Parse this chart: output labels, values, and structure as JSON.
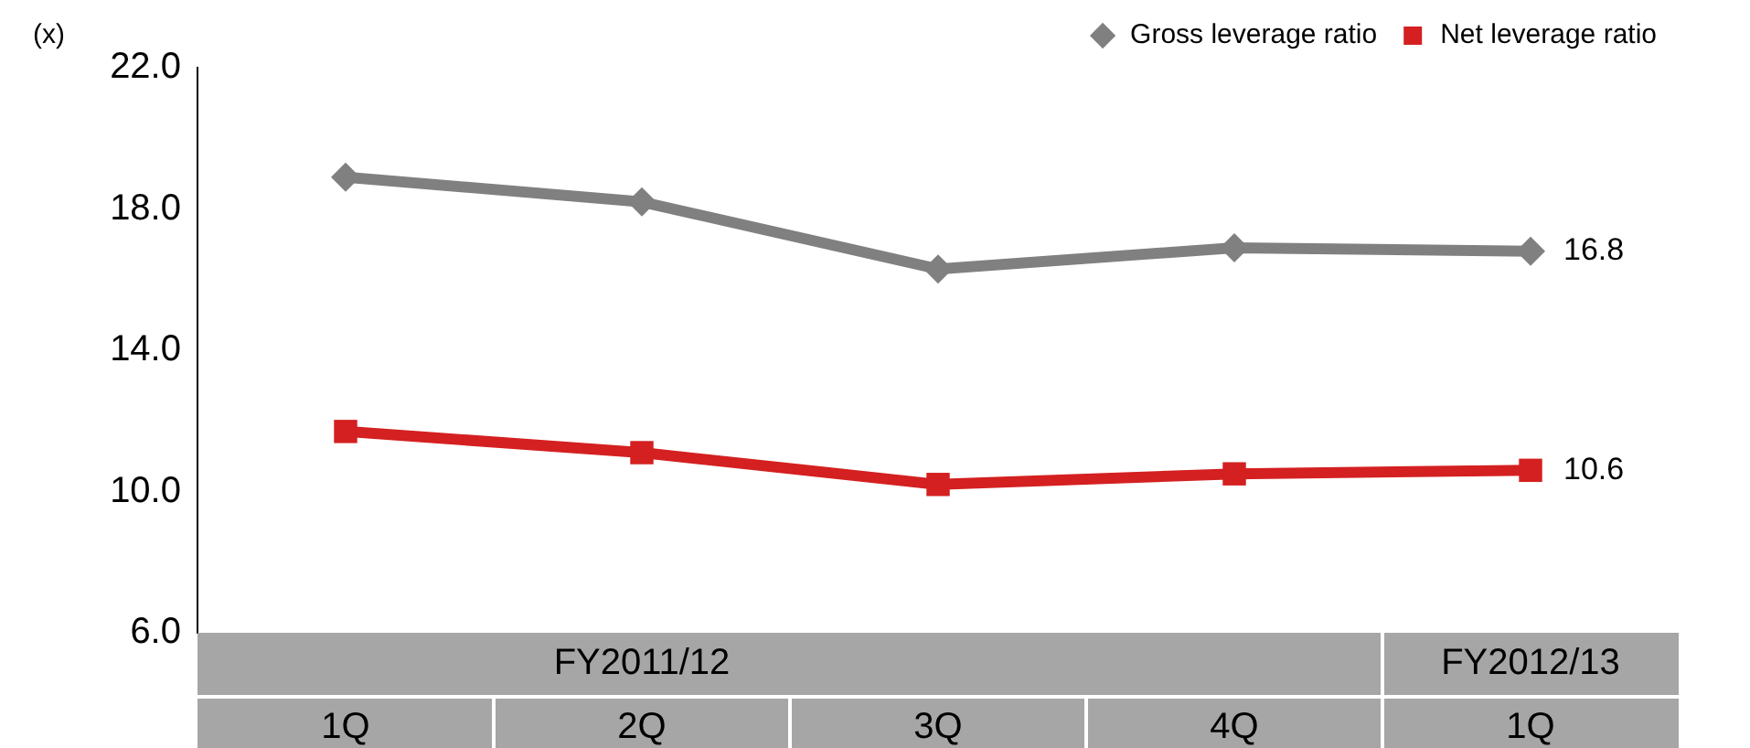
{
  "chart_data": {
    "type": "line",
    "ylabel": "(x)",
    "categories": [
      "1Q",
      "2Q",
      "3Q",
      "4Q",
      "1Q"
    ],
    "series": [
      {
        "name": "Gross leverage ratio",
        "color": "#808080",
        "marker": "diamond",
        "values": [
          18.9,
          18.2,
          16.3,
          16.9,
          16.8
        ],
        "value_labels": [
          null,
          null,
          null,
          null,
          "16.8"
        ]
      },
      {
        "name": "Net leverage ratio",
        "color": "#d42020",
        "marker": "square",
        "values": [
          11.7,
          11.1,
          10.2,
          10.5,
          10.6
        ],
        "value_labels": [
          null,
          null,
          null,
          null,
          "10.6"
        ]
      }
    ],
    "ylim": [
      6,
      22
    ],
    "yticks": [
      {
        "value": 6,
        "label": "6.0"
      },
      {
        "value": 10,
        "label": "10.0"
      },
      {
        "value": 14,
        "label": "14.0"
      },
      {
        "value": 18,
        "label": "18.0"
      },
      {
        "value": 22,
        "label": "22.0"
      }
    ],
    "legend": "top right",
    "grid": false,
    "annotations": [
      "FY2011/12",
      "FY2012/13"
    ]
  }
}
